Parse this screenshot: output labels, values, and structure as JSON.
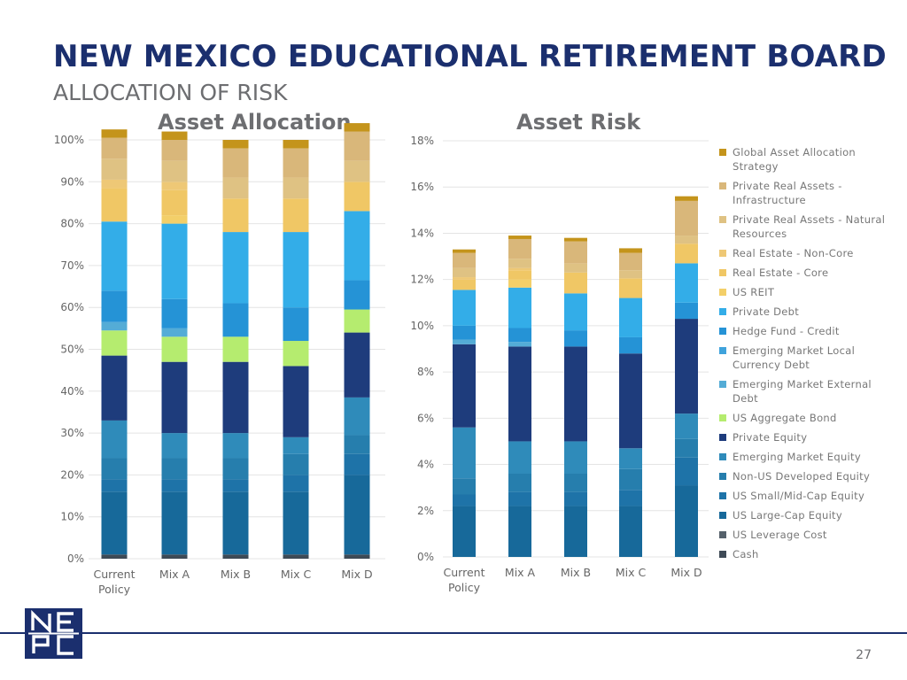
{
  "title": "NEW MEXICO EDUCATIONAL RETIREMENT BOARD",
  "subtitle": "ALLOCATION OF RISK",
  "page_number": "27",
  "logo_text": "NEPC",
  "chart_data": [
    {
      "type": "bar",
      "stacked": true,
      "title": "Asset Allocation",
      "categories": [
        "Current Policy",
        "Mix A",
        "Mix B",
        "Mix C",
        "Mix D"
      ],
      "ylim": [
        0,
        1
      ],
      "yticks": [
        "0%",
        "10%",
        "20%",
        "30%",
        "40%",
        "50%",
        "60%",
        "70%",
        "80%",
        "90%",
        "100%"
      ],
      "series": [
        {
          "name": "Cash",
          "color": "#3e4a56",
          "values": [
            0.01,
            0.01,
            0.01,
            0.01,
            0.01
          ]
        },
        {
          "name": "US Leverage Cost",
          "color": "#55616b",
          "values": [
            0,
            0,
            0,
            0,
            0
          ]
        },
        {
          "name": "US Large-Cap Equity",
          "color": "#17699a",
          "values": [
            0.15,
            0.15,
            0.15,
            0.15,
            0.19
          ]
        },
        {
          "name": "US Small/Mid-Cap Equity",
          "color": "#1e73a8",
          "values": [
            0.03,
            0.03,
            0.03,
            0.04,
            0.05
          ]
        },
        {
          "name": "Non-US Developed Equity",
          "color": "#267ead",
          "values": [
            0.05,
            0.05,
            0.05,
            0.05,
            0.045
          ]
        },
        {
          "name": "Emerging Market Equity",
          "color": "#2f8bba",
          "values": [
            0.09,
            0.06,
            0.06,
            0.04,
            0.09
          ]
        },
        {
          "name": "Private Equity",
          "color": "#1e3c7c",
          "values": [
            0.155,
            0.17,
            0.17,
            0.17,
            0.155
          ]
        },
        {
          "name": "US Aggregate Bond",
          "color": "#b5ec6f",
          "values": [
            0.06,
            0.06,
            0.06,
            0.06,
            0.055
          ]
        },
        {
          "name": "Emerging Market External Debt",
          "color": "#54acd6",
          "values": [
            0.02,
            0.02,
            0,
            0,
            0
          ]
        },
        {
          "name": "Emerging Market Local Currency Debt",
          "color": "#3fa3dc",
          "values": [
            0,
            0,
            0,
            0,
            0
          ]
        },
        {
          "name": "Hedge Fund - Credit",
          "color": "#2593d6",
          "values": [
            0.075,
            0.07,
            0.08,
            0.08,
            0.07
          ]
        },
        {
          "name": "Private Debt",
          "color": "#33ade8",
          "values": [
            0.165,
            0.18,
            0.17,
            0.18,
            0.165
          ]
        },
        {
          "name": "US REIT",
          "color": "#f3cf69",
          "values": [
            0,
            0.02,
            0,
            0,
            0
          ]
        },
        {
          "name": "Real Estate - Core",
          "color": "#f0c765",
          "values": [
            0.08,
            0.06,
            0.08,
            0.08,
            0.07
          ]
        },
        {
          "name": "Real Estate - Non-Core",
          "color": "#eec876",
          "values": [
            0.02,
            0.02,
            0,
            0,
            0
          ]
        },
        {
          "name": "Private Real Assets - Natural Resources",
          "color": "#dfc283",
          "values": [
            0.05,
            0.05,
            0.05,
            0.05,
            0.05
          ]
        },
        {
          "name": "Private Real Assets - Infrastructure",
          "color": "#d9b77a",
          "values": [
            0.05,
            0.05,
            0.07,
            0.07,
            0.07
          ]
        },
        {
          "name": "Global Asset Allocation Strategy",
          "color": "#c4941b",
          "values": [
            0.02,
            0.02,
            0.02,
            0.02,
            0.02
          ]
        }
      ]
    },
    {
      "type": "bar",
      "stacked": true,
      "title": "Asset Risk",
      "categories": [
        "Current Policy",
        "Mix A",
        "Mix B",
        "Mix C",
        "Mix D"
      ],
      "ylim": [
        0,
        0.18
      ],
      "yticks": [
        "0%",
        "2%",
        "4%",
        "6%",
        "8%",
        "10%",
        "12%",
        "14%",
        "16%",
        "18%"
      ],
      "series": [
        {
          "name": "Cash",
          "color": "#3e4a56",
          "values": [
            0,
            0,
            0,
            0,
            0
          ]
        },
        {
          "name": "US Leverage Cost",
          "color": "#55616b",
          "values": [
            0,
            0,
            0,
            0,
            0
          ]
        },
        {
          "name": "US Large-Cap Equity",
          "color": "#17699a",
          "values": [
            0.022,
            0.022,
            0.022,
            0.022,
            0.031
          ]
        },
        {
          "name": "US Small/Mid-Cap Equity",
          "color": "#1e73a8",
          "values": [
            0.005,
            0.006,
            0.006,
            0.007,
            0.012
          ]
        },
        {
          "name": "Non-US Developed Equity",
          "color": "#267ead",
          "values": [
            0.007,
            0.008,
            0.008,
            0.009,
            0.008
          ]
        },
        {
          "name": "Emerging Market Equity",
          "color": "#2f8bba",
          "values": [
            0.022,
            0.014,
            0.014,
            0.009,
            0.011
          ]
        },
        {
          "name": "Private Equity",
          "color": "#1e3c7c",
          "values": [
            0.036,
            0.041,
            0.041,
            0.041,
            0.041
          ]
        },
        {
          "name": "US Aggregate Bond",
          "color": "#b5ec6f",
          "values": [
            0,
            0,
            0,
            0,
            0
          ]
        },
        {
          "name": "Emerging Market External Debt",
          "color": "#54acd6",
          "values": [
            0.002,
            0.002,
            0,
            0,
            0
          ]
        },
        {
          "name": "Emerging Market Local Currency Debt",
          "color": "#3fa3dc",
          "values": [
            0,
            0,
            0,
            0,
            0
          ]
        },
        {
          "name": "Hedge Fund - Credit",
          "color": "#2593d6",
          "values": [
            0.006,
            0.006,
            0.007,
            0.007,
            0.007
          ]
        },
        {
          "name": "Private Debt",
          "color": "#33ade8",
          "values": [
            0.0155,
            0.0175,
            0.016,
            0.017,
            0.017
          ]
        },
        {
          "name": "US REIT",
          "color": "#f3cf69",
          "values": [
            0,
            0.0035,
            0,
            0,
            0
          ]
        },
        {
          "name": "Real Estate - Core",
          "color": "#f0c765",
          "values": [
            0.0045,
            0.004,
            0.009,
            0.0085,
            0.0085
          ]
        },
        {
          "name": "Real Estate - Non-Core",
          "color": "#eec876",
          "values": [
            0.001,
            0.001,
            0,
            0,
            0
          ]
        },
        {
          "name": "Private Real Assets - Natural Resources",
          "color": "#dfc283",
          "values": [
            0.004,
            0.004,
            0.004,
            0.0035,
            0.0035
          ]
        },
        {
          "name": "Private Real Assets - Infrastructure",
          "color": "#d9b77a",
          "values": [
            0.0065,
            0.0085,
            0.0095,
            0.0075,
            0.015
          ]
        },
        {
          "name": "Global Asset Allocation Strategy",
          "color": "#c4941b",
          "values": [
            0.0015,
            0.0015,
            0.0015,
            0.002,
            0.002
          ]
        }
      ]
    }
  ]
}
